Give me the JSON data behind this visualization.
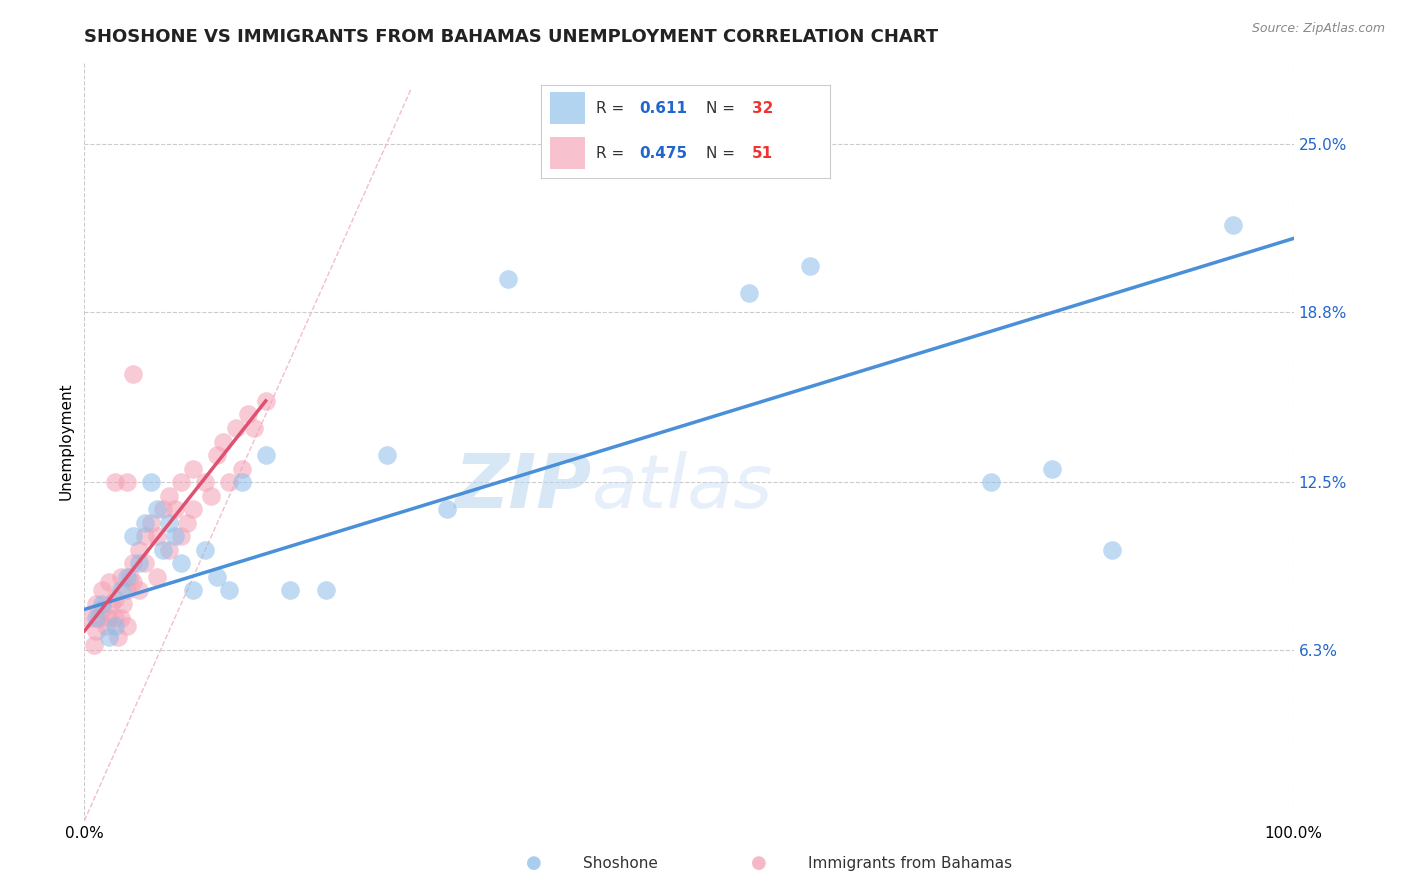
{
  "title": "SHOSHONE VS IMMIGRANTS FROM BAHAMAS UNEMPLOYMENT CORRELATION CHART",
  "source_text": "Source: ZipAtlas.com",
  "xlabel_blue": "Shoshone",
  "xlabel_pink": "Immigrants from Bahamas",
  "ylabel": "Unemployment",
  "xlim": [
    0,
    100
  ],
  "ylim": [
    0,
    28
  ],
  "yticks": [
    6.3,
    12.5,
    18.8,
    25.0
  ],
  "xticks": [
    0,
    100
  ],
  "xtick_labels": [
    "0.0%",
    "100.0%"
  ],
  "ytick_labels": [
    "6.3%",
    "12.5%",
    "18.8%",
    "25.0%"
  ],
  "legend_r1": "0.611",
  "legend_n1": "32",
  "legend_r2": "0.475",
  "legend_n2": "51",
  "blue_color": "#8BBDE8",
  "pink_color": "#F4A0B5",
  "blue_line_color": "#4A90D9",
  "pink_line_color": "#E05070",
  "diagonal_color": "#F0B8C0",
  "watermark_zip": "ZIP",
  "watermark_atlas": "atlas",
  "title_fontsize": 13,
  "axis_label_fontsize": 11,
  "tick_fontsize": 11,
  "blue_x": [
    1.0,
    1.5,
    2.0,
    2.5,
    3.0,
    3.5,
    4.0,
    4.5,
    5.0,
    5.5,
    6.0,
    6.5,
    7.0,
    7.5,
    8.0,
    9.0,
    10.0,
    11.0,
    12.0,
    13.0,
    15.0,
    17.0,
    20.0,
    25.0,
    30.0,
    35.0,
    55.0,
    60.0,
    75.0,
    80.0,
    85.0,
    95.0
  ],
  "blue_y": [
    7.5,
    8.0,
    6.8,
    7.2,
    8.5,
    9.0,
    10.5,
    9.5,
    11.0,
    12.5,
    11.5,
    10.0,
    11.0,
    10.5,
    9.5,
    8.5,
    10.0,
    9.0,
    8.5,
    12.5,
    13.5,
    8.5,
    8.5,
    13.5,
    11.5,
    20.0,
    19.5,
    20.5,
    12.5,
    13.0,
    10.0,
    22.0
  ],
  "pink_x": [
    0.5,
    0.8,
    1.0,
    1.0,
    1.2,
    1.5,
    1.5,
    1.8,
    2.0,
    2.0,
    2.2,
    2.5,
    2.5,
    2.8,
    3.0,
    3.0,
    3.2,
    3.5,
    3.5,
    3.8,
    4.0,
    4.0,
    4.5,
    4.5,
    5.0,
    5.0,
    5.5,
    6.0,
    6.0,
    6.5,
    7.0,
    7.0,
    7.5,
    8.0,
    8.0,
    8.5,
    9.0,
    9.0,
    10.0,
    10.5,
    11.0,
    11.5,
    12.0,
    12.5,
    13.0,
    13.5,
    14.0,
    15.0,
    2.5,
    3.5,
    4.0
  ],
  "pink_y": [
    7.5,
    6.5,
    7.0,
    8.0,
    7.5,
    7.8,
    8.5,
    7.2,
    7.5,
    8.8,
    8.0,
    7.5,
    8.2,
    6.8,
    7.5,
    9.0,
    8.0,
    8.5,
    7.2,
    9.0,
    8.8,
    9.5,
    10.0,
    8.5,
    9.5,
    10.5,
    11.0,
    9.0,
    10.5,
    11.5,
    10.0,
    12.0,
    11.5,
    10.5,
    12.5,
    11.0,
    11.5,
    13.0,
    12.5,
    12.0,
    13.5,
    14.0,
    12.5,
    14.5,
    13.0,
    15.0,
    14.5,
    15.5,
    12.5,
    12.5,
    16.5
  ],
  "blue_line_x0": 0,
  "blue_line_x1": 100,
  "blue_line_y0": 7.8,
  "blue_line_y1": 21.5,
  "pink_line_x0": 0,
  "pink_line_x1": 15,
  "pink_line_y0": 7.0,
  "pink_line_y1": 15.5,
  "diag_x0": 0,
  "diag_x1": 27,
  "diag_y0": 0,
  "diag_y1": 27
}
